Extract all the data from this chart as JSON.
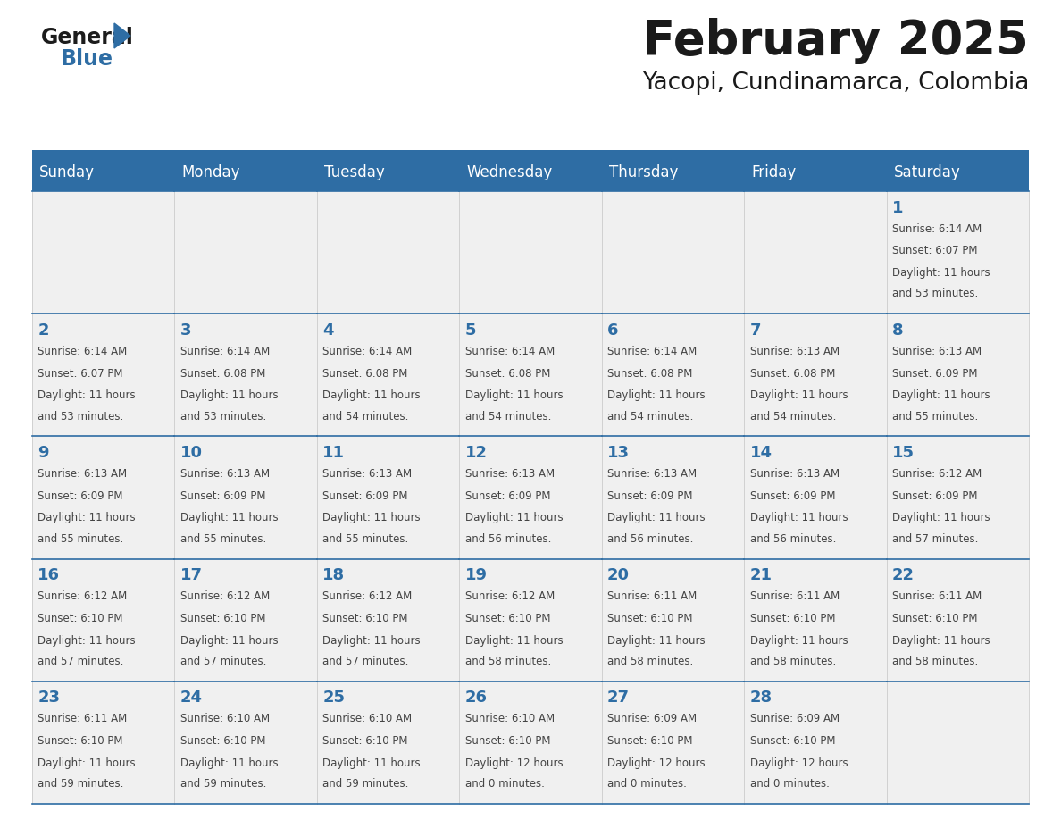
{
  "title": "February 2025",
  "subtitle": "Yacopi, Cundinamarca, Colombia",
  "days_of_week": [
    "Sunday",
    "Monday",
    "Tuesday",
    "Wednesday",
    "Thursday",
    "Friday",
    "Saturday"
  ],
  "header_bg": "#2E6DA4",
  "header_text_color": "#FFFFFF",
  "cell_bg": "#F0F0F0",
  "border_color": "#2E6DA4",
  "day_number_color": "#2E6DA4",
  "text_color": "#444444",
  "title_color": "#1a1a1a",
  "calendar_data": [
    [
      {
        "day": null
      },
      {
        "day": null
      },
      {
        "day": null
      },
      {
        "day": null
      },
      {
        "day": null
      },
      {
        "day": null
      },
      {
        "day": 1,
        "sunrise": "6:14 AM",
        "sunset": "6:07 PM",
        "daylight_line1": "Daylight: 11 hours",
        "daylight_line2": "and 53 minutes."
      }
    ],
    [
      {
        "day": 2,
        "sunrise": "6:14 AM",
        "sunset": "6:07 PM",
        "daylight_line1": "Daylight: 11 hours",
        "daylight_line2": "and 53 minutes."
      },
      {
        "day": 3,
        "sunrise": "6:14 AM",
        "sunset": "6:08 PM",
        "daylight_line1": "Daylight: 11 hours",
        "daylight_line2": "and 53 minutes."
      },
      {
        "day": 4,
        "sunrise": "6:14 AM",
        "sunset": "6:08 PM",
        "daylight_line1": "Daylight: 11 hours",
        "daylight_line2": "and 54 minutes."
      },
      {
        "day": 5,
        "sunrise": "6:14 AM",
        "sunset": "6:08 PM",
        "daylight_line1": "Daylight: 11 hours",
        "daylight_line2": "and 54 minutes."
      },
      {
        "day": 6,
        "sunrise": "6:14 AM",
        "sunset": "6:08 PM",
        "daylight_line1": "Daylight: 11 hours",
        "daylight_line2": "and 54 minutes."
      },
      {
        "day": 7,
        "sunrise": "6:13 AM",
        "sunset": "6:08 PM",
        "daylight_line1": "Daylight: 11 hours",
        "daylight_line2": "and 54 minutes."
      },
      {
        "day": 8,
        "sunrise": "6:13 AM",
        "sunset": "6:09 PM",
        "daylight_line1": "Daylight: 11 hours",
        "daylight_line2": "and 55 minutes."
      }
    ],
    [
      {
        "day": 9,
        "sunrise": "6:13 AM",
        "sunset": "6:09 PM",
        "daylight_line1": "Daylight: 11 hours",
        "daylight_line2": "and 55 minutes."
      },
      {
        "day": 10,
        "sunrise": "6:13 AM",
        "sunset": "6:09 PM",
        "daylight_line1": "Daylight: 11 hours",
        "daylight_line2": "and 55 minutes."
      },
      {
        "day": 11,
        "sunrise": "6:13 AM",
        "sunset": "6:09 PM",
        "daylight_line1": "Daylight: 11 hours",
        "daylight_line2": "and 55 minutes."
      },
      {
        "day": 12,
        "sunrise": "6:13 AM",
        "sunset": "6:09 PM",
        "daylight_line1": "Daylight: 11 hours",
        "daylight_line2": "and 56 minutes."
      },
      {
        "day": 13,
        "sunrise": "6:13 AM",
        "sunset": "6:09 PM",
        "daylight_line1": "Daylight: 11 hours",
        "daylight_line2": "and 56 minutes."
      },
      {
        "day": 14,
        "sunrise": "6:13 AM",
        "sunset": "6:09 PM",
        "daylight_line1": "Daylight: 11 hours",
        "daylight_line2": "and 56 minutes."
      },
      {
        "day": 15,
        "sunrise": "6:12 AM",
        "sunset": "6:09 PM",
        "daylight_line1": "Daylight: 11 hours",
        "daylight_line2": "and 57 minutes."
      }
    ],
    [
      {
        "day": 16,
        "sunrise": "6:12 AM",
        "sunset": "6:10 PM",
        "daylight_line1": "Daylight: 11 hours",
        "daylight_line2": "and 57 minutes."
      },
      {
        "day": 17,
        "sunrise": "6:12 AM",
        "sunset": "6:10 PM",
        "daylight_line1": "Daylight: 11 hours",
        "daylight_line2": "and 57 minutes."
      },
      {
        "day": 18,
        "sunrise": "6:12 AM",
        "sunset": "6:10 PM",
        "daylight_line1": "Daylight: 11 hours",
        "daylight_line2": "and 57 minutes."
      },
      {
        "day": 19,
        "sunrise": "6:12 AM",
        "sunset": "6:10 PM",
        "daylight_line1": "Daylight: 11 hours",
        "daylight_line2": "and 58 minutes."
      },
      {
        "day": 20,
        "sunrise": "6:11 AM",
        "sunset": "6:10 PM",
        "daylight_line1": "Daylight: 11 hours",
        "daylight_line2": "and 58 minutes."
      },
      {
        "day": 21,
        "sunrise": "6:11 AM",
        "sunset": "6:10 PM",
        "daylight_line1": "Daylight: 11 hours",
        "daylight_line2": "and 58 minutes."
      },
      {
        "day": 22,
        "sunrise": "6:11 AM",
        "sunset": "6:10 PM",
        "daylight_line1": "Daylight: 11 hours",
        "daylight_line2": "and 58 minutes."
      }
    ],
    [
      {
        "day": 23,
        "sunrise": "6:11 AM",
        "sunset": "6:10 PM",
        "daylight_line1": "Daylight: 11 hours",
        "daylight_line2": "and 59 minutes."
      },
      {
        "day": 24,
        "sunrise": "6:10 AM",
        "sunset": "6:10 PM",
        "daylight_line1": "Daylight: 11 hours",
        "daylight_line2": "and 59 minutes."
      },
      {
        "day": 25,
        "sunrise": "6:10 AM",
        "sunset": "6:10 PM",
        "daylight_line1": "Daylight: 11 hours",
        "daylight_line2": "and 59 minutes."
      },
      {
        "day": 26,
        "sunrise": "6:10 AM",
        "sunset": "6:10 PM",
        "daylight_line1": "Daylight: 12 hours",
        "daylight_line2": "and 0 minutes."
      },
      {
        "day": 27,
        "sunrise": "6:09 AM",
        "sunset": "6:10 PM",
        "daylight_line1": "Daylight: 12 hours",
        "daylight_line2": "and 0 minutes."
      },
      {
        "day": 28,
        "sunrise": "6:09 AM",
        "sunset": "6:10 PM",
        "daylight_line1": "Daylight: 12 hours",
        "daylight_line2": "and 0 minutes."
      },
      {
        "day": null
      }
    ]
  ]
}
